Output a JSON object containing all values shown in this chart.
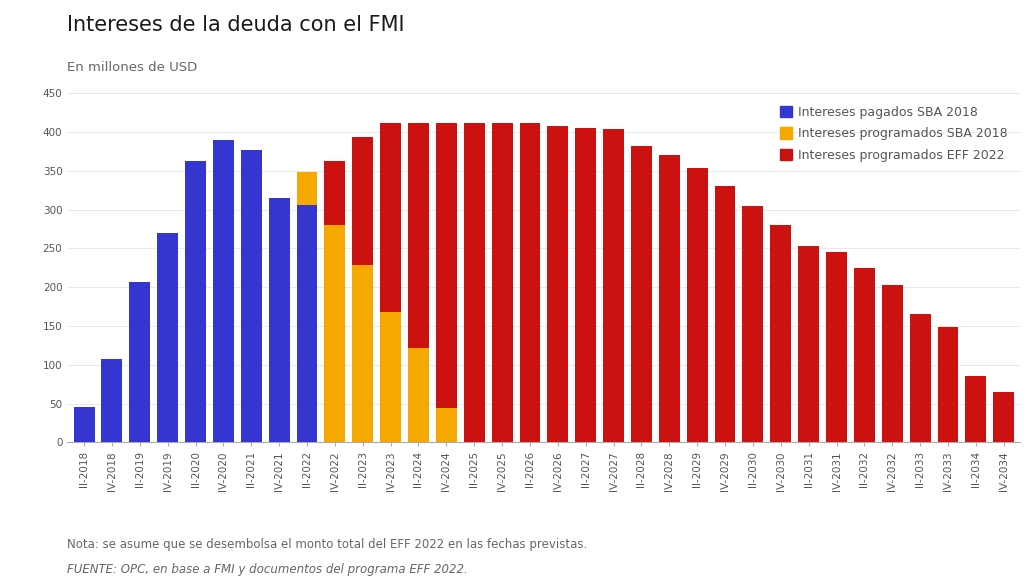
{
  "title": "Intereses de la deuda con el FMI",
  "subtitle": "En millones de USD",
  "note": "Nota: se asume que se desembolsa el monto total del EFF 2022 en las fechas previstas.",
  "source": "FUENTE: OPC, en base a FMI y documentos del programa EFF 2022.",
  "legend_labels": [
    "Intereses pagados SBA 2018",
    "Intereses programados SBA 2018",
    "Intereses programados EFF 2022"
  ],
  "bar_color_blue": "#3535d0",
  "bar_color_yellow": "#f5a800",
  "bar_color_red": "#cc1111",
  "background_color": "#ffffff",
  "ylim_max": 450,
  "yticks": [
    0,
    50,
    100,
    150,
    200,
    250,
    300,
    350,
    400,
    450
  ],
  "categories": [
    "II-2018",
    "IV-2018",
    "II-2019",
    "IV-2019",
    "II-2020",
    "IV-2020",
    "II-2021",
    "IV-2021",
    "II-2022",
    "IV-2022",
    "II-2023",
    "IV-2023",
    "II-2024",
    "IV-2024",
    "II-2025",
    "IV-2025",
    "II-2026",
    "IV-2026",
    "II-2027",
    "IV-2027",
    "II-2028",
    "IV-2028",
    "II-2029",
    "IV-2029",
    "II-2030",
    "IV-2030",
    "II-2031",
    "IV-2031",
    "II-2032",
    "IV-2032",
    "II-2033",
    "IV-2033",
    "II-2034",
    "IV-2034"
  ],
  "blue_values": [
    46,
    108,
    207,
    270,
    362,
    390,
    377,
    315,
    306,
    0,
    0,
    0,
    0,
    0,
    0,
    0,
    0,
    0,
    0,
    0,
    0,
    0,
    0,
    0,
    0,
    0,
    0,
    0,
    0,
    0,
    0,
    0,
    0,
    0
  ],
  "yellow_values": [
    0,
    0,
    0,
    0,
    0,
    0,
    0,
    0,
    348,
    280,
    229,
    168,
    122,
    44,
    0,
    0,
    0,
    0,
    0,
    0,
    0,
    0,
    0,
    0,
    0,
    0,
    0,
    0,
    0,
    0,
    0,
    0,
    0,
    0
  ],
  "red_values": [
    0,
    0,
    0,
    0,
    0,
    0,
    0,
    0,
    0,
    363,
    394,
    411,
    411,
    411,
    411,
    411,
    411,
    408,
    405,
    404,
    382,
    370,
    354,
    330,
    305,
    280,
    253,
    245,
    224,
    203,
    166,
    148,
    85,
    65
  ],
  "title_fontsize": 15,
  "subtitle_fontsize": 9.5,
  "tick_fontsize": 7.5,
  "legend_fontsize": 9,
  "note_fontsize": 8.5,
  "title_color": "#1a1a1a",
  "subtitle_color": "#666666",
  "tick_color": "#555555",
  "axis_color": "#aaaaaa",
  "grid_color": "#e5e5e5"
}
